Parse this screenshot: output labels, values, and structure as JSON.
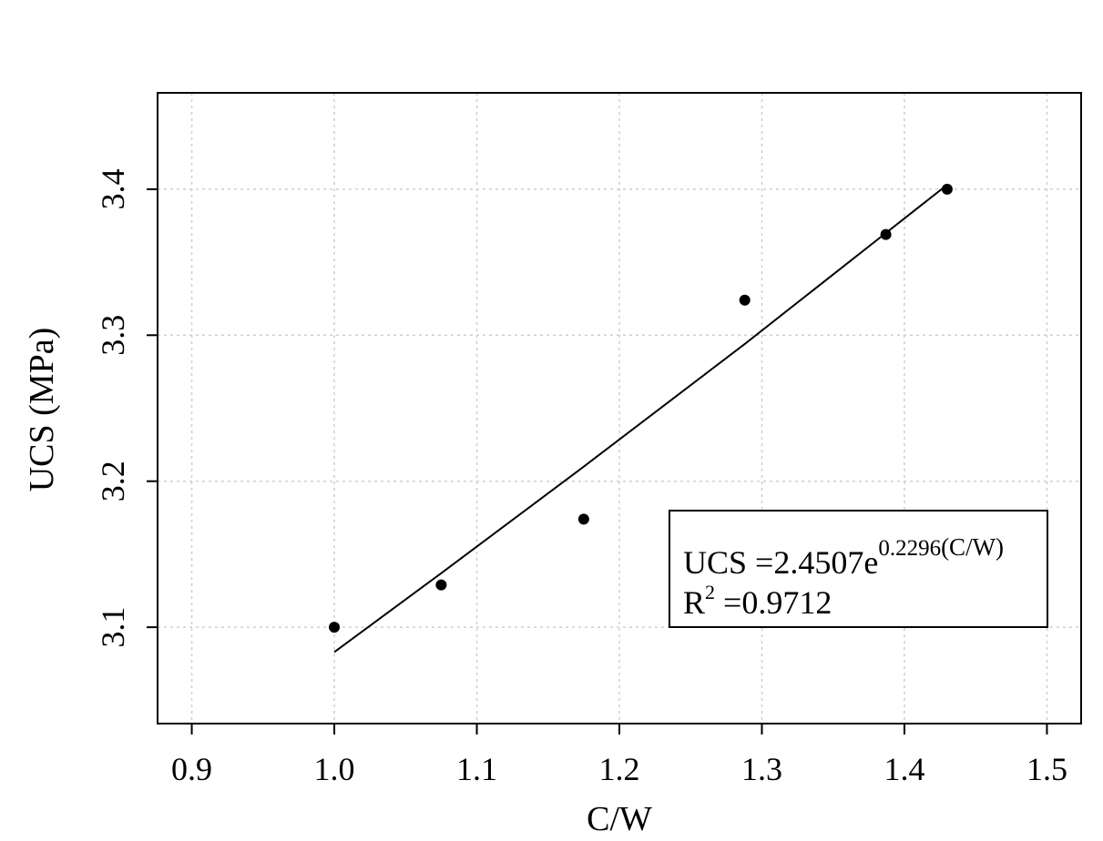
{
  "chart_data": {
    "type": "scatter",
    "xlabel": "C/W",
    "ylabel": "UCS (MPa)",
    "x": [
      1.0,
      1.075,
      1.175,
      1.288,
      1.387,
      1.43
    ],
    "series": [
      {
        "mode": "markers",
        "color": "#000000",
        "values": [
          3.1,
          3.129,
          3.174,
          3.324,
          3.369,
          3.4
        ]
      },
      {
        "mode": "lines",
        "color": "#000000",
        "values": [
          3.083,
          3.137,
          3.21,
          3.294,
          3.37,
          3.403
        ]
      }
    ],
    "xlim": [
      0.876,
      1.524
    ],
    "ylim": [
      3.034,
      3.466
    ],
    "xticks": [
      0.9,
      {
        "value": 1,
        "label": "1.0"
      },
      1.1,
      1.2,
      1.3,
      1.4,
      1.5
    ],
    "yticks": [
      3.1,
      3.2,
      3.3,
      3.4
    ],
    "grid": true,
    "annotation": {
      "line1": "UCS =2.4507e",
      "exponent": "0.2296",
      "exponent_tail": "(C/W)",
      "line2": "R",
      "line2_sup": "2",
      "line2_tail": " =0.9712"
    }
  }
}
